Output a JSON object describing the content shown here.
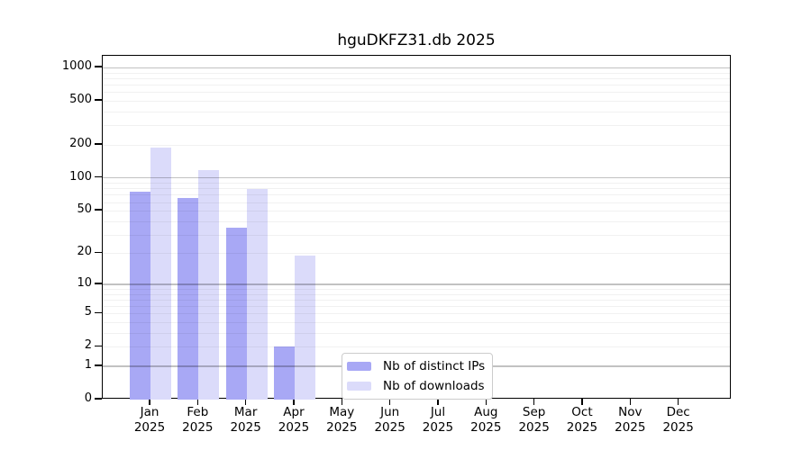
{
  "title": "hguDKFZ31.db 2025",
  "legend": {
    "items": [
      {
        "label": "Nb of distinct IPs"
      },
      {
        "label": "Nb of downloads"
      }
    ]
  },
  "colors": {
    "grid_major": "#0000003d",
    "grid_minor": "#0000000e",
    "axis": "#000000",
    "legend_border": "#cccccc"
  },
  "chart_data": {
    "type": "bar",
    "title": "hguDKFZ31.db 2025",
    "categories": [
      "Jan 2025",
      "Feb 2025",
      "Mar 2025",
      "Apr 2025",
      "May 2025",
      "Jun 2025",
      "Jul 2025",
      "Aug 2025",
      "Sep 2025",
      "Oct 2025",
      "Nov 2025",
      "Dec 2025"
    ],
    "series": [
      {
        "name": "Nb of distinct IPs",
        "color": "#a8a8f5",
        "values": [
          75,
          66,
          35,
          2,
          0,
          0,
          0,
          0,
          0,
          0,
          0,
          0
        ]
      },
      {
        "name": "Nb of downloads",
        "color": "#dbdbfa",
        "values": [
          190,
          118,
          79,
          19,
          0,
          0,
          0,
          0,
          0,
          0,
          0,
          0
        ]
      }
    ],
    "xlabel": "",
    "ylabel": "",
    "yscale": "log1p",
    "ylim": [
      0,
      1280
    ],
    "yticks": [
      0,
      1,
      2,
      5,
      10,
      20,
      50,
      100,
      200,
      500,
      1000
    ],
    "grid": true,
    "grid_major_at": [
      1,
      10,
      100,
      1000
    ],
    "legend_position": "lower center"
  }
}
